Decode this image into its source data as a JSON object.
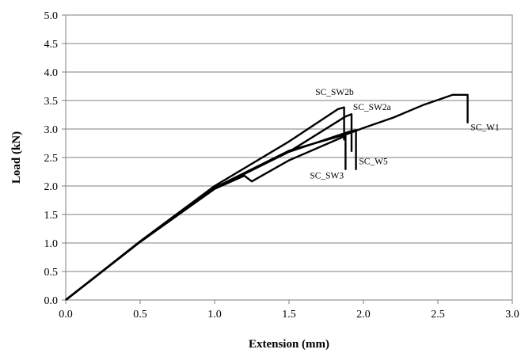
{
  "chart_data": {
    "type": "line",
    "xlabel": "Extension (mm)",
    "ylabel": "Load (kN)",
    "xlim": [
      0,
      3.0
    ],
    "ylim": [
      0,
      5.0
    ],
    "x_ticks": [
      "0.0",
      "0.5",
      "1.0",
      "1.5",
      "2.0",
      "2.5",
      "3.0"
    ],
    "y_ticks": [
      "0.0",
      "0.5",
      "1.0",
      "1.5",
      "2.0",
      "2.5",
      "3.0",
      "3.5",
      "4.0",
      "4.5",
      "5.0"
    ],
    "grid": "horizontal",
    "legend": "none",
    "series": [
      {
        "name": "SC_W1",
        "x": [
          0,
          0.5,
          1.0,
          1.5,
          1.9,
          2.0,
          2.2,
          2.4,
          2.6,
          2.7,
          2.7
        ],
        "y": [
          0,
          1.02,
          1.97,
          2.62,
          2.92,
          3.02,
          3.2,
          3.42,
          3.6,
          3.6,
          3.1
        ]
      },
      {
        "name": "SC_W5",
        "x": [
          0,
          0.5,
          1.0,
          1.5,
          1.9,
          1.95,
          1.95
        ],
        "y": [
          0,
          1.02,
          1.95,
          2.6,
          2.95,
          2.98,
          2.28
        ]
      },
      {
        "name": "SC_SW3",
        "x": [
          0,
          0.5,
          1.0,
          1.2,
          1.25,
          1.5,
          1.88,
          1.88
        ],
        "y": [
          0,
          1.02,
          1.95,
          2.18,
          2.08,
          2.45,
          2.88,
          2.28
        ]
      },
      {
        "name": "SC_SW2a",
        "x": [
          0,
          0.5,
          1.0,
          1.2,
          1.5,
          1.88,
          1.92,
          1.92
        ],
        "y": [
          0,
          1.02,
          1.96,
          2.22,
          2.6,
          3.22,
          3.26,
          2.6
        ]
      },
      {
        "name": "SC_SW2b",
        "x": [
          0,
          0.5,
          1.0,
          1.5,
          1.83,
          1.87,
          1.87
        ],
        "y": [
          0,
          1.03,
          2.0,
          2.78,
          3.35,
          3.38,
          2.8
        ]
      }
    ],
    "annotations": [
      "SC_SW2b",
      "SC_SW2a",
      "SC_W1",
      "SC_W5",
      "SC_SW3"
    ]
  }
}
